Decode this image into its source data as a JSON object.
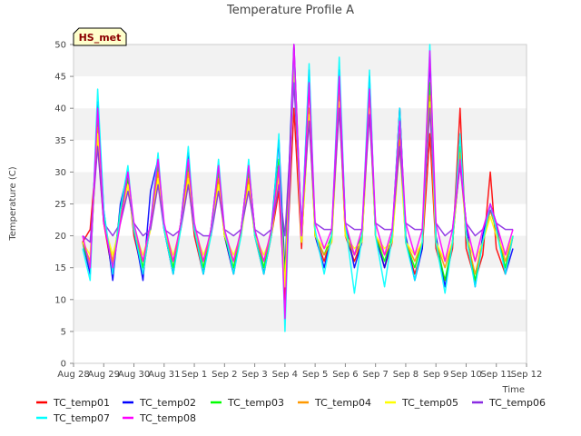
{
  "chart_data": {
    "type": "line",
    "title": "Temperature Profile A",
    "xlabel": "Time",
    "ylabel": "Temperature (C)",
    "ylim": [
      0,
      50
    ],
    "yticks": [
      0,
      5,
      10,
      15,
      20,
      25,
      30,
      35,
      40,
      45,
      50
    ],
    "xlim": [
      "2023-08-28",
      "2023-09-12"
    ],
    "xticks": [
      "Aug 28",
      "Aug 29",
      "Aug 30",
      "Aug 31",
      "Sep 1",
      "Sep 2",
      "Sep 3",
      "Sep 4",
      "Sep 5",
      "Sep 6",
      "Sep 7",
      "Sep 8",
      "Sep 9",
      "Sep 10",
      "Sep 11",
      "Sep 12"
    ],
    "grid": "horizontal bands",
    "legend_position": "bottom",
    "badge": "HS_met",
    "series": [
      {
        "name": "TC_temp01",
        "color": "#ff0000",
        "x_days": [
          0.3,
          0.55,
          0.8,
          1.0,
          1.3,
          1.55,
          1.8,
          2.0,
          2.3,
          2.55,
          2.8,
          3.0,
          3.3,
          3.55,
          3.8,
          4.0,
          4.3,
          4.55,
          4.8,
          5.0,
          5.3,
          5.55,
          5.8,
          6.0,
          6.3,
          6.55,
          6.8,
          7.0,
          7.3,
          7.55,
          7.8,
          8.0,
          8.3,
          8.55,
          8.8,
          9.0,
          9.3,
          9.55,
          9.8,
          10.0,
          10.3,
          10.55,
          10.8,
          11.0,
          11.3,
          11.55,
          11.8,
          12.0,
          12.3,
          12.55,
          12.8,
          13.0,
          13.3,
          13.55,
          13.8,
          14.0,
          14.3,
          14.55
        ],
        "values": [
          19,
          21,
          35,
          22,
          14,
          24,
          29,
          20,
          14,
          22,
          30,
          21,
          14,
          22,
          29,
          20,
          14,
          21,
          29,
          20,
          14,
          21,
          29,
          20,
          14,
          20,
          27,
          10,
          40,
          18,
          44,
          20,
          16,
          20,
          42,
          20,
          16,
          19,
          42,
          20,
          15,
          19,
          40,
          19,
          14,
          18,
          36,
          18,
          13,
          18,
          40,
          18,
          13,
          17,
          30,
          18,
          14,
          20
        ]
      },
      {
        "name": "TC_temp02",
        "color": "#0000ff",
        "x_days": [
          0.3,
          0.55,
          0.8,
          1.0,
          1.3,
          1.55,
          1.8,
          2.0,
          2.3,
          2.55,
          2.8,
          3.0,
          3.3,
          3.55,
          3.8,
          4.0,
          4.3,
          4.55,
          4.8,
          5.0,
          5.3,
          5.55,
          5.8,
          6.0,
          6.3,
          6.55,
          6.8,
          7.0,
          7.3,
          7.55,
          7.8,
          8.0,
          8.3,
          8.55,
          8.8,
          9.0,
          9.3,
          9.55,
          9.8,
          10.0,
          10.3,
          10.55,
          10.8,
          11.0,
          11.3,
          11.55,
          11.8,
          12.0,
          12.3,
          12.55,
          12.8,
          13.0,
          13.3,
          13.55,
          13.8,
          14.0,
          14.3,
          14.55
        ],
        "values": [
          19,
          14,
          41,
          24,
          13,
          25,
          30,
          21,
          13,
          27,
          32,
          21,
          14,
          22,
          33,
          21,
          14,
          21,
          31,
          20,
          14,
          21,
          31,
          21,
          14,
          21,
          35,
          14,
          50,
          20,
          46,
          20,
          15,
          20,
          46,
          22,
          15,
          19,
          45,
          20,
          15,
          20,
          40,
          20,
          13,
          18,
          48,
          20,
          12,
          19,
          32,
          22,
          12,
          20,
          25,
          22,
          14,
          18
        ]
      },
      {
        "name": "TC_temp03",
        "color": "#00ff00",
        "x_days": [
          0.3,
          0.55,
          0.8,
          1.0,
          1.3,
          1.55,
          1.8,
          2.0,
          2.3,
          2.55,
          2.8,
          3.0,
          3.3,
          3.55,
          3.8,
          4.0,
          4.3,
          4.55,
          4.8,
          5.0,
          5.3,
          5.55,
          5.8,
          6.0,
          6.3,
          6.55,
          6.8,
          7.0,
          7.3,
          7.55,
          7.8,
          8.0,
          8.3,
          8.55,
          8.8,
          9.0,
          9.3,
          9.55,
          9.8,
          10.0,
          10.3,
          10.55,
          10.8,
          11.0,
          11.3,
          11.55,
          11.8,
          12.0,
          12.3,
          12.55,
          12.8,
          13.0,
          13.3,
          13.55,
          13.8,
          14.0,
          14.3,
          14.55
        ],
        "values": [
          19,
          15,
          38,
          23,
          15,
          24,
          29,
          21,
          15,
          22,
          31,
          21,
          15,
          22,
          31,
          21,
          15,
          21,
          30,
          20,
          15,
          21,
          30,
          21,
          15,
          21,
          32,
          13,
          48,
          19,
          40,
          20,
          17,
          20,
          43,
          21,
          17,
          20,
          42,
          20,
          16,
          20,
          36,
          19,
          15,
          19,
          44,
          19,
          13,
          19,
          34,
          20,
          13,
          19,
          24,
          21,
          15,
          20
        ]
      },
      {
        "name": "TC_temp04",
        "color": "#ff9900",
        "x_days": [
          0.3,
          0.55,
          0.8,
          1.0,
          1.3,
          1.55,
          1.8,
          2.0,
          2.3,
          2.55,
          2.8,
          3.0,
          3.3,
          3.55,
          3.8,
          4.0,
          4.3,
          4.55,
          4.8,
          5.0,
          5.3,
          5.55,
          5.8,
          6.0,
          6.3,
          6.55,
          6.8,
          7.0,
          7.3,
          7.55,
          7.8,
          8.0,
          8.3,
          8.55,
          8.8,
          9.0,
          9.3,
          9.55,
          9.8,
          10.0,
          10.3,
          10.55,
          10.8,
          11.0,
          11.3,
          11.55,
          11.8,
          12.0,
          12.3,
          12.55,
          12.8,
          13.0,
          13.3,
          13.55,
          13.8,
          14.0,
          14.3,
          14.55
        ],
        "values": [
          19,
          16,
          37,
          22,
          16,
          23,
          28,
          21,
          16,
          21,
          30,
          21,
          16,
          21,
          30,
          21,
          16,
          20,
          29,
          20,
          16,
          20,
          29,
          20,
          16,
          20,
          30,
          12,
          47,
          19,
          40,
          20,
          17,
          19,
          42,
          20,
          17,
          19,
          41,
          20,
          17,
          19,
          35,
          19,
          16,
          19,
          42,
          19,
          15,
          19,
          33,
          20,
          14,
          19,
          24,
          21,
          16,
          20
        ]
      },
      {
        "name": "TC_temp05",
        "color": "#ffff00",
        "x_days": [
          0.3,
          0.55,
          0.8,
          1.0,
          1.3,
          1.55,
          1.8,
          2.0,
          2.3,
          2.55,
          2.8,
          3.0,
          3.3,
          3.55,
          3.8,
          4.0,
          4.3,
          4.55,
          4.8,
          5.0,
          5.3,
          5.55,
          5.8,
          6.0,
          6.3,
          6.55,
          6.8,
          7.0,
          7.3,
          7.55,
          7.8,
          8.0,
          8.3,
          8.55,
          8.8,
          9.0,
          9.3,
          9.55,
          9.8,
          10.0,
          10.3,
          10.55,
          10.8,
          11.0,
          11.3,
          11.55,
          11.8,
          12.0,
          12.3,
          12.55,
          12.8,
          13.0,
          13.3,
          13.55,
          13.8,
          14.0,
          14.3,
          14.55
        ],
        "values": [
          19,
          17,
          36,
          22,
          17,
          22,
          28,
          21,
          17,
          21,
          29,
          21,
          17,
          21,
          29,
          21,
          17,
          20,
          28,
          20,
          17,
          20,
          28,
          20,
          17,
          20,
          29,
          12,
          46,
          19,
          39,
          20,
          18,
          19,
          41,
          20,
          18,
          19,
          40,
          20,
          18,
          19,
          34,
          19,
          17,
          19,
          41,
          19,
          16,
          19,
          32,
          20,
          16,
          19,
          23,
          20,
          17,
          20
        ]
      },
      {
        "name": "TC_temp06",
        "color": "#8a2be2",
        "x_days": [
          0.3,
          0.55,
          0.8,
          1.0,
          1.3,
          1.55,
          1.8,
          2.0,
          2.3,
          2.55,
          2.8,
          3.0,
          3.3,
          3.55,
          3.8,
          4.0,
          4.3,
          4.55,
          4.8,
          5.0,
          5.3,
          5.55,
          5.8,
          6.0,
          6.3,
          6.55,
          6.8,
          7.0,
          7.3,
          7.55,
          7.8,
          8.0,
          8.3,
          8.55,
          8.8,
          9.0,
          9.3,
          9.55,
          9.8,
          10.0,
          10.3,
          10.55,
          10.8,
          11.0,
          11.3,
          11.55,
          11.8,
          12.0,
          12.3,
          12.55,
          12.8,
          13.0,
          13.3,
          13.55,
          13.8,
          14.0,
          14.3,
          14.55
        ],
        "values": [
          20,
          19,
          34,
          22,
          20,
          22,
          27,
          22,
          20,
          21,
          28,
          21,
          20,
          21,
          28,
          21,
          20,
          20,
          27,
          21,
          20,
          21,
          27,
          21,
          20,
          21,
          28,
          20,
          44,
          22,
          38,
          22,
          21,
          21,
          40,
          22,
          21,
          21,
          39,
          22,
          21,
          21,
          34,
          22,
          21,
          21,
          40,
          22,
          20,
          21,
          31,
          22,
          20,
          21,
          24,
          22,
          21,
          21
        ]
      },
      {
        "name": "TC_temp07",
        "color": "#00ffff",
        "x_days": [
          0.3,
          0.55,
          0.8,
          1.0,
          1.3,
          1.55,
          1.8,
          2.0,
          2.3,
          2.55,
          2.8,
          3.0,
          3.3,
          3.55,
          3.8,
          4.0,
          4.3,
          4.55,
          4.8,
          5.0,
          5.3,
          5.55,
          5.8,
          6.0,
          6.3,
          6.55,
          6.8,
          7.0,
          7.3,
          7.55,
          7.8,
          8.0,
          8.3,
          8.55,
          8.8,
          9.0,
          9.3,
          9.55,
          9.8,
          10.0,
          10.3,
          10.55,
          10.8,
          11.0,
          11.3,
          11.55,
          11.8,
          12.0,
          12.3,
          12.55,
          12.8,
          13.0,
          13.3,
          13.55,
          13.8,
          14.0,
          14.3,
          14.55
        ],
        "values": [
          18,
          13,
          43,
          24,
          14,
          24,
          31,
          21,
          14,
          22,
          33,
          21,
          14,
          21,
          34,
          21,
          14,
          20,
          32,
          21,
          14,
          20,
          32,
          20,
          14,
          20,
          36,
          5,
          49,
          20,
          47,
          21,
          14,
          20,
          48,
          22,
          11,
          20,
          46,
          20,
          12,
          20,
          40,
          19,
          13,
          19,
          50,
          19,
          11,
          19,
          36,
          20,
          12,
          19,
          25,
          21,
          14,
          20
        ]
      },
      {
        "name": "TC_temp08",
        "color": "#ff00ff",
        "x_days": [
          0.3,
          0.55,
          0.8,
          1.0,
          1.3,
          1.55,
          1.8,
          2.0,
          2.3,
          2.55,
          2.8,
          3.0,
          3.3,
          3.55,
          3.8,
          4.0,
          4.3,
          4.55,
          4.8,
          5.0,
          5.3,
          5.55,
          5.8,
          6.0,
          6.3,
          6.55,
          6.8,
          7.0,
          7.3,
          7.55,
          7.8,
          8.0,
          8.3,
          8.55,
          8.8,
          9.0,
          9.3,
          9.55,
          9.8,
          10.0,
          10.3,
          10.55,
          10.8,
          11.0,
          11.3,
          11.55,
          11.8,
          12.0,
          12.3,
          12.55,
          12.8,
          13.0,
          13.3,
          13.55,
          13.8,
          14.0,
          14.3,
          14.55
        ],
        "values": [
          20,
          15,
          40,
          22,
          15,
          22,
          30,
          22,
          16,
          22,
          32,
          22,
          16,
          22,
          32,
          22,
          16,
          21,
          31,
          21,
          16,
          21,
          31,
          21,
          16,
          21,
          31,
          7,
          50,
          20,
          44,
          22,
          18,
          21,
          45,
          22,
          17,
          21,
          43,
          22,
          17,
          21,
          38,
          22,
          17,
          21,
          49,
          22,
          16,
          21,
          32,
          22,
          16,
          21,
          25,
          22,
          17,
          21
        ]
      }
    ]
  }
}
